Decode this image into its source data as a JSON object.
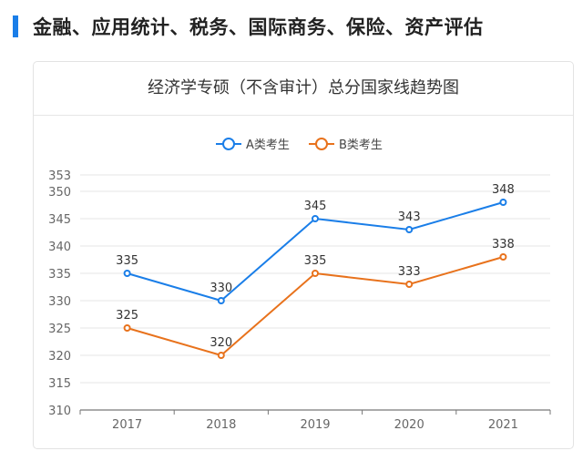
{
  "heading": {
    "text": "金融、应用统计、税务、国际商务、保险、资产评估",
    "accent_color": "#1a7ee8"
  },
  "chart_data": {
    "type": "line",
    "title": "经济学专硕（不含审计）总分国家线趋势图",
    "categories": [
      "2017",
      "2018",
      "2019",
      "2020",
      "2021"
    ],
    "series": [
      {
        "name": "A类考生",
        "color": "#1a7ee8",
        "values": [
          335,
          330,
          345,
          343,
          348
        ]
      },
      {
        "name": "B类考生",
        "color": "#e8721c",
        "values": [
          325,
          320,
          335,
          333,
          338
        ]
      }
    ],
    "xlabel": "",
    "ylabel": "",
    "ylim": [
      310,
      353
    ],
    "yticks": [
      310,
      315,
      320,
      325,
      330,
      335,
      340,
      345,
      350,
      353
    ],
    "grid": true,
    "legend": "top-center",
    "data_labels": true
  }
}
